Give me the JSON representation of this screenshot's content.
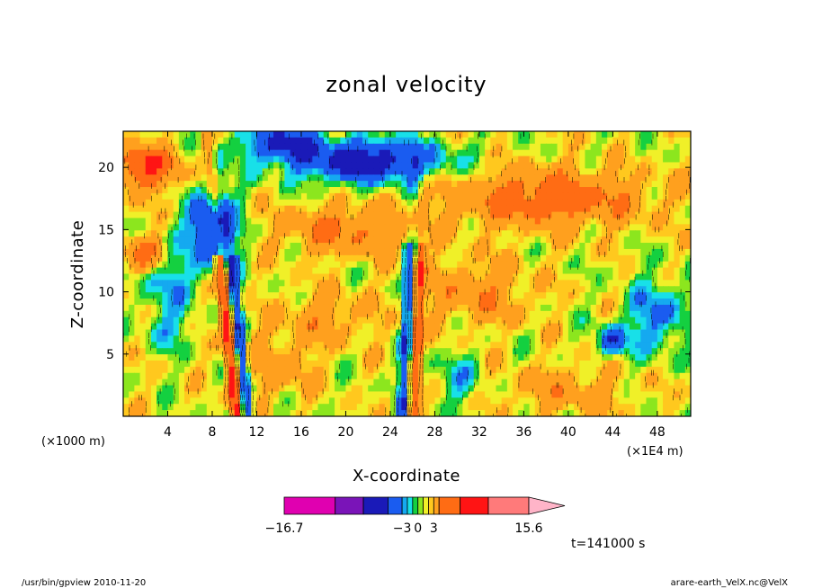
{
  "chart_data": {
    "type": "heatmap",
    "title": "zonal velocity",
    "xlabel": "X-coordinate",
    "ylabel": "Z-coordinate",
    "x_unit_left": "(×1000 m)",
    "x_unit_right": "(×1E4 m)",
    "xlim": [
      0,
      51
    ],
    "ylim": [
      0,
      22.9
    ],
    "xticks": [
      4,
      8,
      12,
      16,
      20,
      24,
      28,
      32,
      36,
      40,
      44,
      48
    ],
    "xtick_labels": [
      "4",
      "8",
      "12",
      "16",
      "20",
      "24",
      "28",
      "32",
      "36",
      "40",
      "44",
      "48"
    ],
    "yticks": [
      5,
      10,
      15,
      20
    ],
    "ytick_labels": [
      "5",
      "10",
      "15",
      "20"
    ],
    "colorbar": {
      "levels": [
        -16.7,
        -13.5,
        -10,
        -6,
        -3,
        -2,
        -1,
        0,
        1,
        2,
        3,
        6,
        10,
        13.5,
        15.6
      ],
      "colors": [
        "#e000b0",
        "#7a14b8",
        "#1a1ab8",
        "#1a5cf0",
        "#15a9f0",
        "#18e0e8",
        "#14d040",
        "#8ce61e",
        "#f0f028",
        "#ffc81e",
        "#ffa01e",
        "#ff6c14",
        "#ff1414",
        "#ff7a7a",
        "#ffb4c8"
      ],
      "tick_labels": [
        "−16.7",
        "−3",
        "0",
        "3",
        "15.6"
      ],
      "tick_values": [
        -16.7,
        -3,
        0,
        3,
        15.6
      ]
    },
    "time_label": "t=141000 s",
    "grid": false
  },
  "footer": {
    "left": "/usr/bin/gpview   2010-11-20",
    "right": "arare-earth_VelX.nc@VelX"
  }
}
